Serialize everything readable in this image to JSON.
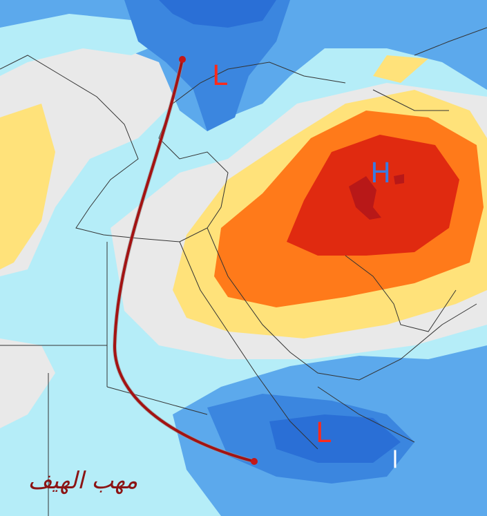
{
  "labels": {
    "low_north": "L",
    "high": "H",
    "low_south": "L",
    "mark": "l"
  },
  "caption": "مهب الهيف"
}
